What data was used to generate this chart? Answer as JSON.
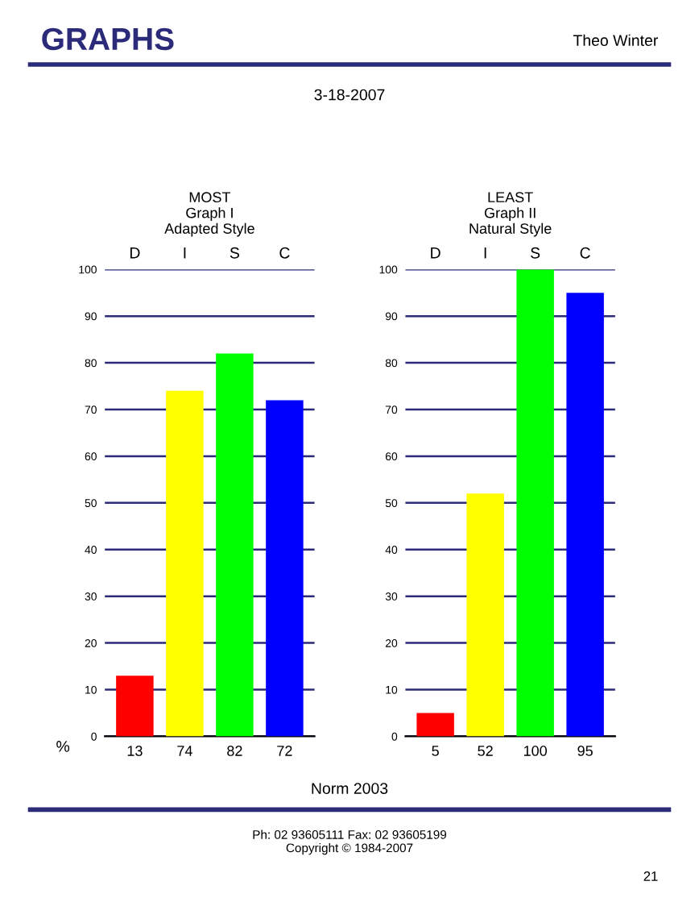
{
  "chart_data": [
    {
      "type": "other",
      "title": "GRAPHS",
      "annotations": [
        "Theo Winter",
        "3-18-2007"
      ]
    },
    {
      "type": "bar",
      "title": "MOST\nGraph I\nAdapted Style",
      "ylabel": "%",
      "categories": [
        "D",
        "I",
        "S",
        "C"
      ],
      "values": [
        13,
        74,
        82,
        72
      ],
      "colors": [
        "#ff0000",
        "#ffff00",
        "#00ff00",
        "#0000ff"
      ],
      "ylim": [
        0,
        100
      ],
      "yticks": [
        0,
        10,
        20,
        30,
        40,
        50,
        60,
        70,
        80,
        90,
        100
      ],
      "grid": "y",
      "data_labels": true
    },
    {
      "type": "bar",
      "title": "LEAST\nGraph II\nNatural Style",
      "categories": [
        "D",
        "I",
        "S",
        "C"
      ],
      "values": [
        5,
        52,
        100,
        95
      ],
      "colors": [
        "#ff0000",
        "#ffff00",
        "#00ff00",
        "#0000ff"
      ],
      "ylim": [
        0,
        100
      ],
      "yticks": [
        0,
        10,
        20,
        30,
        40,
        50,
        60,
        70,
        80,
        90,
        100
      ],
      "grid": "y",
      "data_labels": true
    },
    {
      "type": "other",
      "annotations": [
        "Norm 2003",
        "Ph: 02 93605111 Fax: 02 93605199",
        "Copyright © 1984-2007",
        "21"
      ]
    }
  ]
}
